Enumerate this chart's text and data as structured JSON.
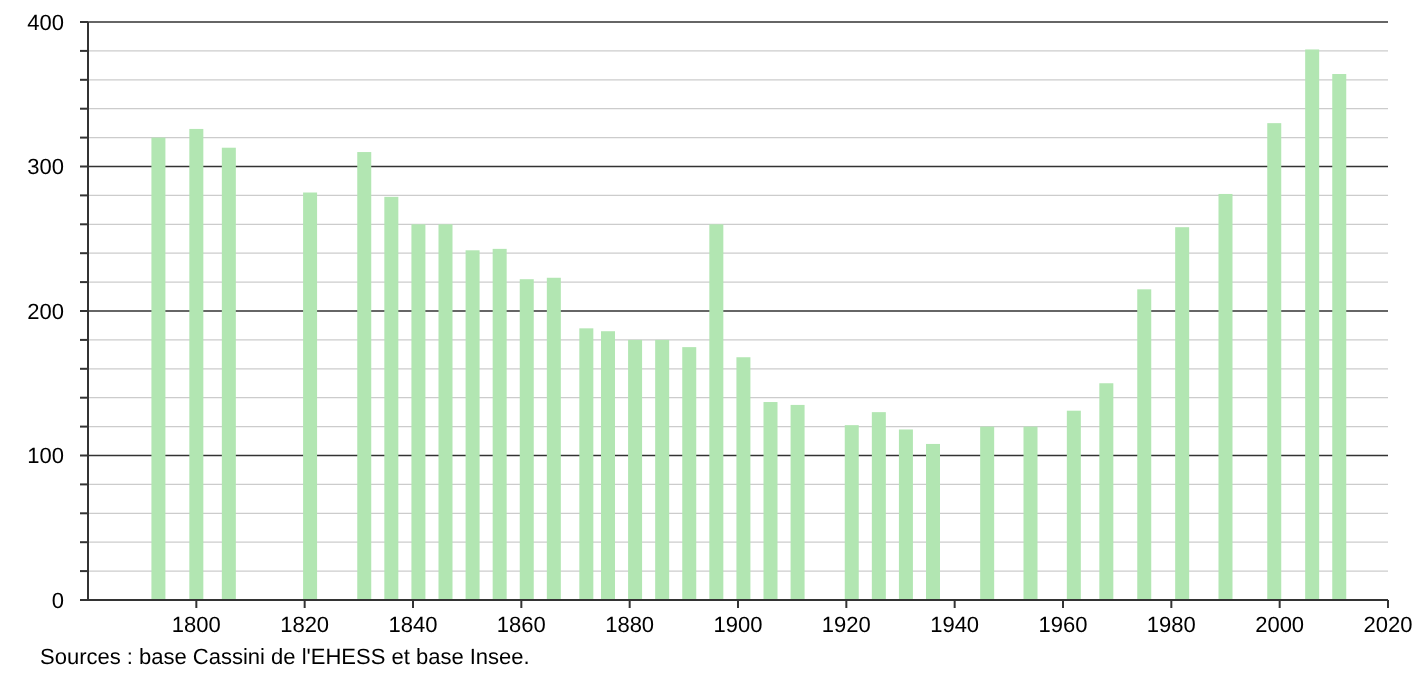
{
  "chart_data": {
    "type": "bar",
    "x": [
      1793,
      1800,
      1806,
      1821,
      1831,
      1836,
      1841,
      1846,
      1851,
      1856,
      1861,
      1866,
      1872,
      1876,
      1881,
      1886,
      1891,
      1896,
      1901,
      1906,
      1911,
      1921,
      1926,
      1931,
      1936,
      1946,
      1954,
      1962,
      1968,
      1975,
      1982,
      1990,
      1999,
      2006,
      2011
    ],
    "series": [
      {
        "color": "#b2e6b2",
        "values": [
          320,
          326,
          313,
          282,
          310,
          279,
          260,
          260,
          242,
          243,
          222,
          223,
          188,
          186,
          180,
          180,
          175,
          260,
          168,
          137,
          135,
          121,
          130,
          118,
          108,
          120,
          120,
          131,
          150,
          215,
          258,
          281,
          330,
          381,
          364
        ]
      }
    ],
    "xlim": [
      1780,
      2020
    ],
    "xticks": [
      1800,
      1820,
      1840,
      1860,
      1880,
      1900,
      1920,
      1940,
      1960,
      1980,
      2000,
      2020
    ],
    "ylim": [
      0,
      400
    ],
    "yticks": [
      0,
      {
        "value": 20,
        "label": null
      },
      {
        "value": 40,
        "label": null
      },
      {
        "value": 60,
        "label": null
      },
      {
        "value": 80,
        "label": null
      },
      100,
      {
        "value": 120,
        "label": null
      },
      {
        "value": 140,
        "label": null
      },
      {
        "value": 160,
        "label": null
      },
      {
        "value": 180,
        "label": null
      },
      200,
      {
        "value": 220,
        "label": null
      },
      {
        "value": 240,
        "label": null
      },
      {
        "value": 260,
        "label": null
      },
      {
        "value": 280,
        "label": null
      },
      300,
      {
        "value": 320,
        "label": null
      },
      {
        "value": 340,
        "label": null
      },
      {
        "value": 360,
        "label": null
      },
      {
        "value": 380,
        "label": null
      },
      400
    ],
    "grid": "y",
    "annotations": [
      "Sources : base Cassini de l'EHESS et base Insee."
    ]
  }
}
